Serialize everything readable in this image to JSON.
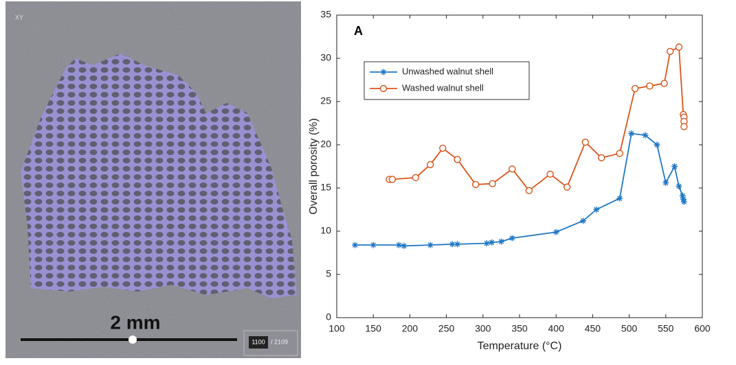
{
  "image_panel": {
    "view_label": "XY",
    "scale_bar": "2 mm",
    "slice_current": "1100",
    "slice_total": "/ 2109"
  },
  "chart_data": {
    "type": "line",
    "panel_label": "A",
    "x_label": "Temperature (°C)",
    "y_label": "Overall porosity (%)",
    "xlim": [
      100,
      600
    ],
    "xticks": [
      100,
      150,
      200,
      250,
      300,
      350,
      400,
      450,
      500,
      550,
      600
    ],
    "ylim": [
      0,
      35
    ],
    "yticks": [
      0,
      5,
      10,
      15,
      20,
      25,
      30,
      35
    ],
    "grid": false,
    "legend": "upper left",
    "series": [
      {
        "name": "Unwashed walnut shell",
        "color": "#1f77c4",
        "marker": "asterisk",
        "x": [
          125,
          150,
          185,
          192,
          228,
          258,
          265,
          305,
          312,
          325,
          340,
          400,
          437,
          455,
          487,
          503,
          522,
          538,
          550,
          562,
          568,
          573,
          574,
          575
        ],
        "values": [
          8.4,
          8.4,
          8.4,
          8.3,
          8.4,
          8.5,
          8.5,
          8.6,
          8.7,
          8.8,
          9.2,
          9.9,
          11.2,
          12.5,
          13.8,
          21.3,
          21.1,
          20.0,
          15.6,
          17.5,
          15.2,
          14.1,
          13.7,
          13.4
        ]
      },
      {
        "name": "Washed walnut shell",
        "color": "#d95319",
        "marker": "circle",
        "x": [
          172,
          176,
          208,
          228,
          245,
          265,
          290,
          313,
          340,
          363,
          392,
          415,
          440,
          462,
          487,
          508,
          528,
          548,
          556,
          568,
          574,
          575,
          575,
          575
        ],
        "values": [
          16.0,
          16.0,
          16.2,
          17.7,
          19.6,
          18.3,
          15.4,
          15.5,
          17.2,
          14.7,
          16.6,
          15.1,
          20.3,
          18.5,
          19.0,
          26.5,
          26.8,
          27.1,
          30.8,
          31.3,
          23.5,
          23.2,
          22.7,
          22.1
        ]
      }
    ]
  }
}
